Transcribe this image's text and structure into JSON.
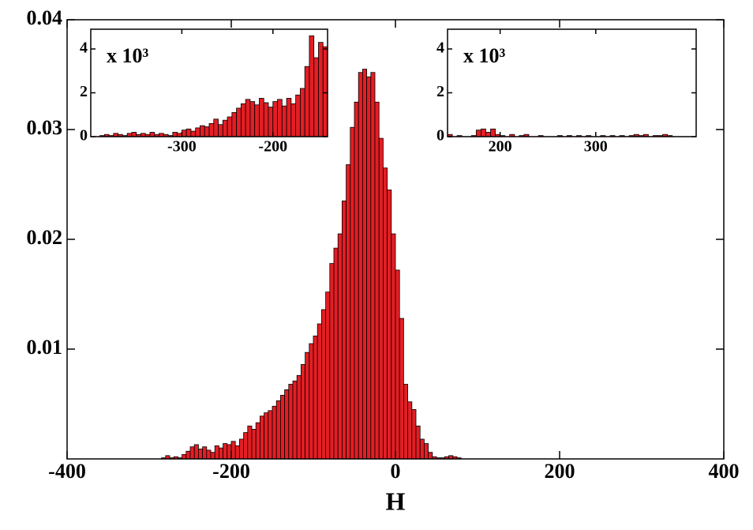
{
  "chart_data": [
    {
      "type": "histogram",
      "xlabel": "H",
      "color": "#e31e24",
      "bins": [
        -285,
        -280,
        -275,
        -270,
        -265,
        -260,
        -255,
        -250,
        -245,
        -240,
        -235,
        -230,
        -225,
        -220,
        -215,
        -210,
        -205,
        -200,
        -195,
        -190,
        -185,
        -180,
        -175,
        -170,
        -165,
        -160,
        -155,
        -150,
        -145,
        -140,
        -135,
        -130,
        -125,
        -120,
        -115,
        -110,
        -105,
        -100,
        -95,
        -90,
        -85,
        -80,
        -75,
        -70,
        -65,
        -60,
        -55,
        -50,
        -45,
        -40,
        -35,
        -30,
        -25,
        -20,
        -15,
        -10,
        -5,
        0,
        5,
        10,
        15,
        20,
        25,
        30,
        35,
        40,
        45,
        50,
        55,
        60,
        65,
        70,
        75,
        80
      ],
      "values": [
        0.0001,
        0.0003,
        0.0001,
        0.0002,
        0.0001,
        0.0004,
        0.0007,
        0.0011,
        0.0013,
        0.0009,
        0.0011,
        0.0008,
        0.0006,
        0.0012,
        0.001,
        0.0014,
        0.0013,
        0.0016,
        0.0012,
        0.0018,
        0.0024,
        0.003,
        0.0027,
        0.0033,
        0.0039,
        0.0042,
        0.0044,
        0.0048,
        0.0053,
        0.0058,
        0.0063,
        0.0068,
        0.0071,
        0.0076,
        0.0086,
        0.0097,
        0.0105,
        0.0112,
        0.0123,
        0.0136,
        0.0152,
        0.0178,
        0.0192,
        0.0205,
        0.0235,
        0.0268,
        0.0302,
        0.0325,
        0.0352,
        0.0355,
        0.0348,
        0.0352,
        0.0325,
        0.0292,
        0.0265,
        0.0245,
        0.0205,
        0.0172,
        0.0128,
        0.0068,
        0.0052,
        0.0045,
        0.003,
        0.0018,
        0.0014,
        0.0006,
        0.0002,
        0.0001,
        0.0001,
        0.0002,
        0.0003,
        0.0002,
        0.0001
      ],
      "xlim": [
        -400,
        400
      ],
      "xticks": [
        -400,
        -200,
        0,
        200,
        400
      ],
      "ylim": [
        0,
        0.04
      ],
      "yticks": [
        0.01,
        0.02,
        0.03,
        0.04
      ]
    },
    {
      "type": "histogram",
      "scale_label": "x 10³",
      "color": "#e31e24",
      "bins": [
        -390,
        -385,
        -380,
        -375,
        -370,
        -365,
        -360,
        -355,
        -350,
        -345,
        -340,
        -335,
        -330,
        -325,
        -320,
        -315,
        -310,
        -305,
        -300,
        -295,
        -290,
        -285,
        -280,
        -275,
        -270,
        -265,
        -260,
        -255,
        -250,
        -245,
        -240,
        -235,
        -230,
        -225,
        -220,
        -215,
        -210,
        -205,
        -200,
        -195,
        -190,
        -185,
        -180,
        -175,
        -170,
        -165,
        -160,
        -155,
        -150,
        -145,
        -140
      ],
      "values": [
        0.05,
        0.1,
        0.05,
        0.15,
        0.1,
        0.05,
        0.15,
        0.2,
        0.1,
        0.15,
        0.1,
        0.2,
        0.1,
        0.15,
        0.1,
        0.05,
        0.2,
        0.15,
        0.3,
        0.35,
        0.25,
        0.4,
        0.5,
        0.45,
        0.6,
        0.8,
        0.55,
        0.75,
        0.9,
        1.1,
        1.3,
        1.5,
        1.7,
        1.6,
        1.45,
        1.75,
        1.55,
        1.35,
        1.6,
        1.7,
        1.4,
        1.75,
        1.5,
        1.9,
        2.2,
        3.2,
        4.6,
        3.6,
        4.3,
        4.1
      ],
      "xlim": [
        -400,
        -140
      ],
      "xticks": [
        -300,
        -200
      ],
      "ylim": [
        0,
        4.9
      ],
      "yticks": [
        0,
        2,
        4
      ]
    },
    {
      "type": "histogram",
      "scale_label": "x 10³",
      "color": "#e31e24",
      "bins": [
        145,
        150,
        155,
        160,
        165,
        170,
        175,
        180,
        185,
        190,
        195,
        200,
        205,
        210,
        215,
        220,
        225,
        230,
        235,
        240,
        245,
        250,
        255,
        260,
        265,
        270,
        275,
        280,
        285,
        290,
        295,
        300,
        305,
        310,
        315,
        320,
        325,
        330,
        335,
        340,
        345,
        350,
        355,
        360,
        365,
        370,
        375,
        380,
        385,
        390,
        395,
        400
      ],
      "values": [
        0.1,
        0,
        0.05,
        0,
        0,
        0.05,
        0.3,
        0.35,
        0.2,
        0.35,
        0.1,
        0.05,
        0,
        0.1,
        0,
        0.05,
        0.1,
        0,
        0,
        0.05,
        0,
        0,
        0,
        0.05,
        0,
        0.05,
        0,
        0.05,
        0,
        0.05,
        0,
        0,
        0.05,
        0,
        0.05,
        0,
        0.05,
        0,
        0.05,
        0.1,
        0.05,
        0.1,
        0,
        0.05,
        0.05,
        0.1,
        0.05,
        0,
        0,
        0,
        0
      ],
      "xlim": [
        145,
        405
      ],
      "xticks": [
        200,
        300
      ],
      "ylim": [
        0,
        4.9
      ],
      "yticks": [
        0,
        2,
        4
      ]
    }
  ]
}
